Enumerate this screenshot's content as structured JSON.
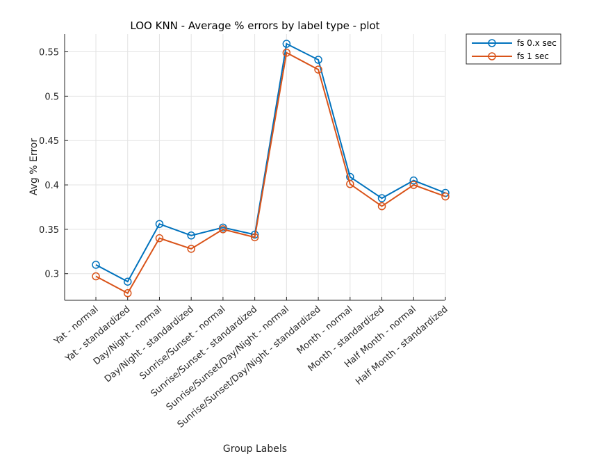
{
  "chart_data": {
    "type": "line",
    "title": "LOO KNN - Average % errors by label type - plot",
    "xlabel": "Group Labels",
    "ylabel": "Avg % Error",
    "categories": [
      "Yat - normal",
      "Yat - standardized",
      "Day/Night - normal",
      "Day/Night - standardized",
      "Sunrise/Sunset - normal",
      "Sunrise/Sunset - standardized",
      "Sunrise/Sunset/Day/Night - normal",
      "Sunrise/Sunset/Day/Night - standardized",
      "Month - normal",
      "Month - standardized",
      "Half Month - normal",
      "Half Month - standardized"
    ],
    "series": [
      {
        "name": "fs 0.x sec",
        "color": "#0072BD",
        "marker": "circle",
        "values": [
          0.31,
          0.291,
          0.356,
          0.343,
          0.352,
          0.344,
          0.559,
          0.541,
          0.409,
          0.385,
          0.405,
          0.391
        ]
      },
      {
        "name": "fs 1 sec",
        "color": "#D95319",
        "marker": "circle",
        "values": [
          0.297,
          0.278,
          0.34,
          0.328,
          0.35,
          0.341,
          0.549,
          0.53,
          0.401,
          0.376,
          0.4,
          0.387
        ]
      }
    ],
    "ylim": [
      0.27,
      0.57
    ],
    "yticks": [
      0.3,
      0.35,
      0.4,
      0.45,
      0.5,
      0.55
    ],
    "ytick_labels": [
      "0.3",
      "0.35",
      "0.4",
      "0.45",
      "0.5",
      "0.55"
    ],
    "grid": true,
    "legend_position": "outside top-right"
  }
}
